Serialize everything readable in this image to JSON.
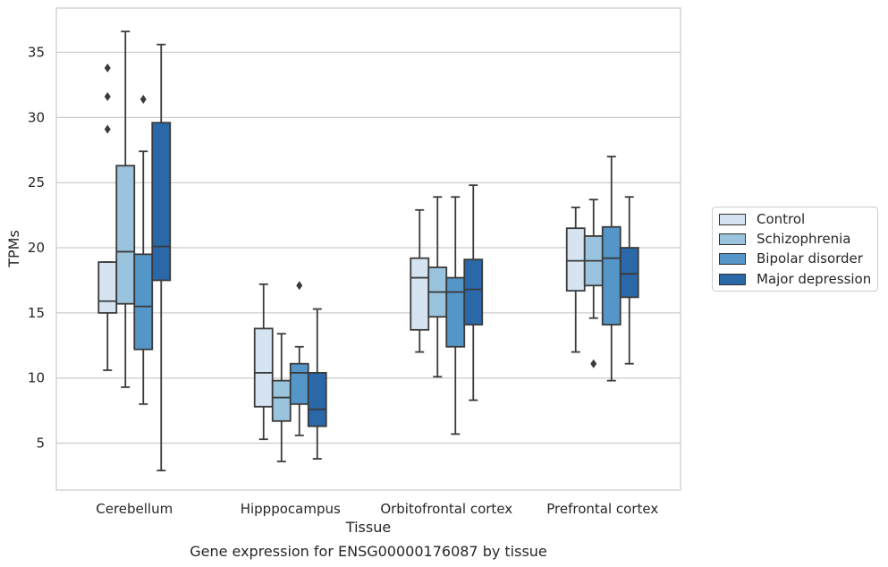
{
  "chart_data": {
    "type": "box",
    "caption": "Gene expression for ENSG00000176087 by tissue",
    "xlabel": "Tissue",
    "ylabel": "TPMs",
    "ylim": [
      1.4,
      38.4
    ],
    "yticks": [
      5,
      10,
      15,
      20,
      25,
      30,
      35
    ],
    "grid": "horizontal",
    "legend_position": "right",
    "categories": [
      "Cerebellum",
      "Hipppocampus",
      "Orbitofrontal cortex",
      "Prefrontal cortex"
    ],
    "series": [
      {
        "name": "Control",
        "color": "#d6e4f2",
        "boxes": [
          {
            "min": 10.6,
            "q1": 15.0,
            "median": 15.9,
            "q3": 18.9,
            "max": 18.9,
            "outliers": [
              29.1,
              31.6,
              33.8
            ]
          },
          {
            "min": 5.3,
            "q1": 7.8,
            "median": 10.4,
            "q3": 13.8,
            "max": 17.2,
            "outliers": []
          },
          {
            "min": 12.0,
            "q1": 13.7,
            "median": 17.7,
            "q3": 19.2,
            "max": 22.9,
            "outliers": []
          },
          {
            "min": 12.0,
            "q1": 16.7,
            "median": 19.0,
            "q3": 21.5,
            "max": 23.1,
            "outliers": []
          }
        ]
      },
      {
        "name": "Schizophrenia",
        "color": "#9ac4de",
        "boxes": [
          {
            "min": 9.3,
            "q1": 15.7,
            "median": 19.7,
            "q3": 26.3,
            "max": 36.6,
            "outliers": []
          },
          {
            "min": 3.6,
            "q1": 6.7,
            "median": 8.5,
            "q3": 9.8,
            "max": 13.4,
            "outliers": []
          },
          {
            "min": 10.1,
            "q1": 14.7,
            "median": 16.6,
            "q3": 18.5,
            "max": 23.9,
            "outliers": []
          },
          {
            "min": 14.6,
            "q1": 17.1,
            "median": 19.0,
            "q3": 20.9,
            "max": 23.7,
            "outliers": [
              11.1
            ]
          }
        ]
      },
      {
        "name": "Bipolar disorder",
        "color": "#5596c8",
        "boxes": [
          {
            "min": 8.0,
            "q1": 12.2,
            "median": 15.5,
            "q3": 19.5,
            "max": 27.4,
            "outliers": [
              31.4
            ]
          },
          {
            "min": 5.6,
            "q1": 8.0,
            "median": 10.4,
            "q3": 11.1,
            "max": 12.4,
            "outliers": [
              17.1
            ]
          },
          {
            "min": 5.7,
            "q1": 12.4,
            "median": 16.6,
            "q3": 17.7,
            "max": 23.9,
            "outliers": []
          },
          {
            "min": 9.8,
            "q1": 14.1,
            "median": 19.2,
            "q3": 21.6,
            "max": 27.0,
            "outliers": []
          }
        ]
      },
      {
        "name": "Major depression",
        "color": "#2a68a8",
        "boxes": [
          {
            "min": 2.9,
            "q1": 17.5,
            "median": 20.1,
            "q3": 29.6,
            "max": 35.6,
            "outliers": []
          },
          {
            "min": 3.8,
            "q1": 6.3,
            "median": 7.6,
            "q3": 10.4,
            "max": 15.3,
            "outliers": []
          },
          {
            "min": 8.3,
            "q1": 14.1,
            "median": 16.8,
            "q3": 19.1,
            "max": 24.8,
            "outliers": []
          },
          {
            "min": 11.1,
            "q1": 16.2,
            "median": 18.0,
            "q3": 20.0,
            "max": 23.9,
            "outliers": []
          }
        ]
      }
    ]
  }
}
